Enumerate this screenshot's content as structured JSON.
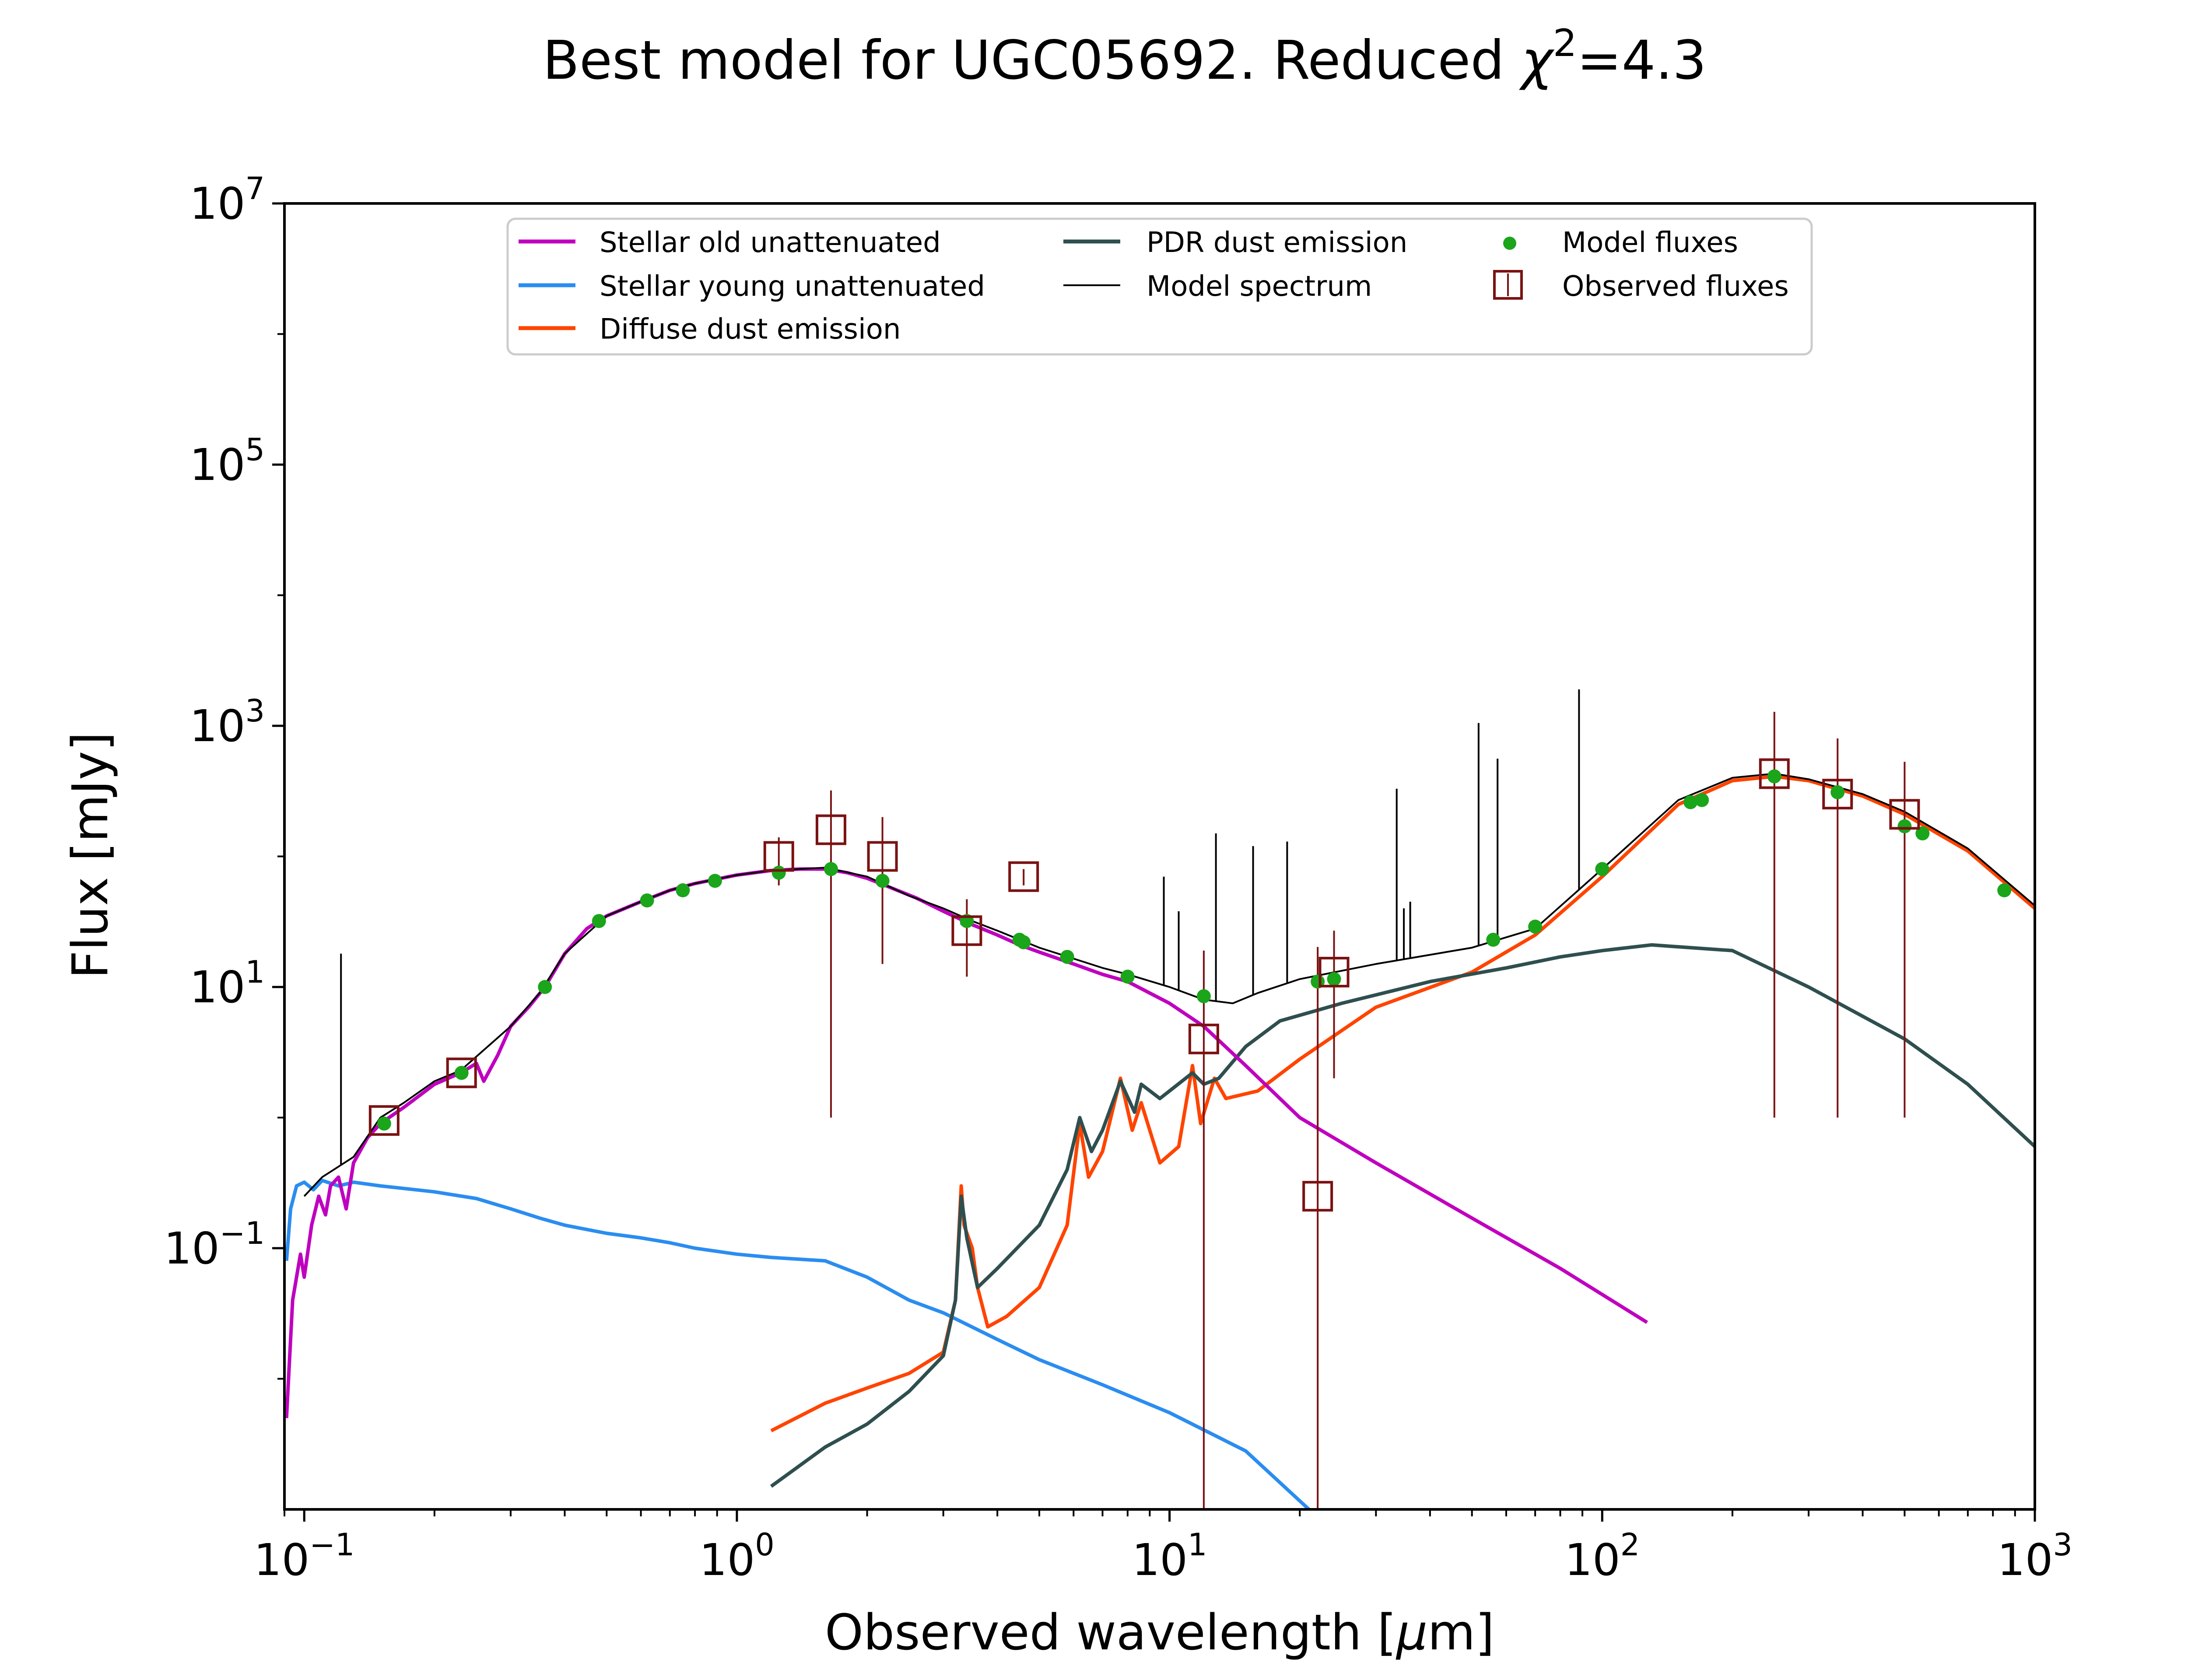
{
  "chart_data": {
    "type": "line",
    "title": "Best model for UGC05692. Reduced χ²=4.3",
    "title_main": "Best model for UGC05692. Reduced ",
    "title_chi": "χ",
    "title_exp": "2",
    "title_value": "=4.3",
    "xlabel": "Observed wavelength [μm]",
    "xlabel_main": "Observed wavelength [",
    "xlabel_mu": "μ",
    "xlabel_end": "m]",
    "ylabel": "Flux [mJy]",
    "x_scale": "log",
    "y_scale": "log",
    "xlim": [
      0.09,
      1000
    ],
    "ylim": [
      0.001,
      10000000
    ],
    "x_ticks": [
      {
        "value": 0.1,
        "base": "10",
        "exp": "−1"
      },
      {
        "value": 1,
        "base": "10",
        "exp": "0"
      },
      {
        "value": 10,
        "base": "10",
        "exp": "1"
      },
      {
        "value": 100,
        "base": "10",
        "exp": "2"
      },
      {
        "value": 1000,
        "base": "10",
        "exp": "3"
      }
    ],
    "y_ticks": [
      {
        "value": 0.1,
        "base": "10",
        "exp": "−1"
      },
      {
        "value": 10,
        "base": "10",
        "exp": "1"
      },
      {
        "value": 1000,
        "base": "10",
        "exp": "3"
      },
      {
        "value": 100000,
        "base": "10",
        "exp": "5"
      },
      {
        "value": 10000000,
        "base": "10",
        "exp": "7"
      }
    ],
    "grid": false,
    "legend_position": "top-center",
    "series": [
      {
        "name": "Stellar old unattenuated",
        "color": "#bf00bf",
        "points": [
          [
            0.091,
            0.005
          ],
          [
            0.094,
            0.04
          ],
          [
            0.098,
            0.09
          ],
          [
            0.1,
            0.06
          ],
          [
            0.104,
            0.15
          ],
          [
            0.108,
            0.25
          ],
          [
            0.112,
            0.18
          ],
          [
            0.115,
            0.3
          ],
          [
            0.12,
            0.35
          ],
          [
            0.125,
            0.2
          ],
          [
            0.13,
            0.45
          ],
          [
            0.14,
            0.7
          ],
          [
            0.15,
            0.9
          ],
          [
            0.17,
            1.2
          ],
          [
            0.2,
            1.8
          ],
          [
            0.23,
            2.2
          ],
          [
            0.25,
            2.6
          ],
          [
            0.26,
            1.9
          ],
          [
            0.28,
            3.0
          ],
          [
            0.3,
            5.0
          ],
          [
            0.33,
            7.0
          ],
          [
            0.36,
            10.0
          ],
          [
            0.4,
            18.0
          ],
          [
            0.45,
            28.0
          ],
          [
            0.5,
            35.0
          ],
          [
            0.6,
            45.0
          ],
          [
            0.7,
            55.0
          ],
          [
            0.8,
            62.0
          ],
          [
            1.0,
            72.0
          ],
          [
            1.2,
            78.0
          ],
          [
            1.4,
            80.0
          ],
          [
            1.6,
            80.0
          ],
          [
            1.8,
            75.0
          ],
          [
            2.0,
            68.0
          ],
          [
            2.2,
            60.0
          ],
          [
            2.6,
            48.0
          ],
          [
            3.0,
            38.0
          ],
          [
            3.5,
            30.0
          ],
          [
            4.0,
            25.0
          ],
          [
            4.5,
            21.0
          ],
          [
            5.0,
            18.5
          ],
          [
            6.0,
            15.0
          ],
          [
            7.0,
            12.5
          ],
          [
            8.0,
            11.0
          ],
          [
            10.0,
            7.5
          ],
          [
            12.0,
            5.0
          ],
          [
            15.0,
            2.5
          ],
          [
            20.0,
            1.0
          ],
          [
            30.0,
            0.45
          ],
          [
            50.0,
            0.17
          ],
          [
            80.0,
            0.07
          ],
          [
            127.0,
            0.027
          ]
        ]
      },
      {
        "name": "Stellar young unattenuated",
        "color": "#2a8df0",
        "points": [
          [
            0.091,
            0.08
          ],
          [
            0.093,
            0.2
          ],
          [
            0.096,
            0.3
          ],
          [
            0.1,
            0.32
          ],
          [
            0.105,
            0.28
          ],
          [
            0.11,
            0.33
          ],
          [
            0.12,
            0.3
          ],
          [
            0.13,
            0.32
          ],
          [
            0.15,
            0.3
          ],
          [
            0.2,
            0.27
          ],
          [
            0.25,
            0.24
          ],
          [
            0.3,
            0.2
          ],
          [
            0.35,
            0.17
          ],
          [
            0.4,
            0.15
          ],
          [
            0.5,
            0.13
          ],
          [
            0.6,
            0.12
          ],
          [
            0.7,
            0.11
          ],
          [
            0.8,
            0.1
          ],
          [
            1.0,
            0.09
          ],
          [
            1.2,
            0.085
          ],
          [
            1.6,
            0.08
          ],
          [
            2.0,
            0.06
          ],
          [
            2.5,
            0.04
          ],
          [
            3.0,
            0.032
          ],
          [
            4.0,
            0.02
          ],
          [
            5.0,
            0.014
          ],
          [
            7.0,
            0.009
          ],
          [
            10.0,
            0.0055
          ],
          [
            15.0,
            0.0028
          ],
          [
            21.0,
            0.001
          ]
        ]
      },
      {
        "name": "Diffuse dust emission",
        "color": "#ff4400",
        "points": [
          [
            1.2,
            0.004
          ],
          [
            1.6,
            0.0065
          ],
          [
            2.0,
            0.0085
          ],
          [
            2.5,
            0.011
          ],
          [
            3.0,
            0.016
          ],
          [
            3.2,
            0.04
          ],
          [
            3.3,
            0.3
          ],
          [
            3.35,
            0.15
          ],
          [
            3.5,
            0.1
          ],
          [
            3.6,
            0.05
          ],
          [
            3.8,
            0.025
          ],
          [
            4.2,
            0.03
          ],
          [
            5.0,
            0.05
          ],
          [
            5.8,
            0.15
          ],
          [
            6.2,
            0.9
          ],
          [
            6.5,
            0.35
          ],
          [
            7.0,
            0.55
          ],
          [
            7.7,
            2.0
          ],
          [
            8.2,
            0.8
          ],
          [
            8.6,
            1.3
          ],
          [
            9.5,
            0.45
          ],
          [
            10.5,
            0.6
          ],
          [
            11.3,
            2.5
          ],
          [
            11.8,
            0.9
          ],
          [
            12.7,
            2.0
          ],
          [
            13.5,
            1.4
          ],
          [
            16.0,
            1.6
          ],
          [
            20.0,
            2.8
          ],
          [
            30.0,
            7.0
          ],
          [
            50.0,
            13.0
          ],
          [
            70.0,
            25.0
          ],
          [
            100.0,
            70.0
          ],
          [
            150.0,
            250.0
          ],
          [
            200.0,
            380.0
          ],
          [
            250.0,
            410.0
          ],
          [
            300.0,
            380.0
          ],
          [
            400.0,
            290.0
          ],
          [
            500.0,
            210.0
          ],
          [
            700.0,
            110.0
          ],
          [
            1000.0,
            40.0
          ]
        ]
      },
      {
        "name": "PDR dust emission",
        "color": "#2f4f4f",
        "points": [
          [
            1.2,
            0.0015
          ],
          [
            1.6,
            0.003
          ],
          [
            2.0,
            0.0045
          ],
          [
            2.5,
            0.008
          ],
          [
            3.0,
            0.015
          ],
          [
            3.2,
            0.04
          ],
          [
            3.3,
            0.25
          ],
          [
            3.4,
            0.12
          ],
          [
            3.6,
            0.05
          ],
          [
            4.0,
            0.07
          ],
          [
            5.0,
            0.15
          ],
          [
            5.8,
            0.4
          ],
          [
            6.2,
            1.0
          ],
          [
            6.6,
            0.55
          ],
          [
            7.0,
            0.8
          ],
          [
            7.7,
            1.9
          ],
          [
            8.3,
            1.1
          ],
          [
            8.6,
            1.8
          ],
          [
            9.5,
            1.4
          ],
          [
            11.3,
            2.2
          ],
          [
            12.0,
            1.8
          ],
          [
            13.0,
            2.0
          ],
          [
            15.0,
            3.5
          ],
          [
            18.0,
            5.5
          ],
          [
            25.0,
            7.5
          ],
          [
            40.0,
            11.0
          ],
          [
            60.0,
            14.0
          ],
          [
            80.0,
            17.0
          ],
          [
            100.0,
            19.0
          ],
          [
            130.0,
            21.0
          ],
          [
            200.0,
            19.0
          ],
          [
            300.0,
            10.0
          ],
          [
            500.0,
            4.0
          ],
          [
            700.0,
            1.8
          ],
          [
            1000.0,
            0.6
          ]
        ]
      },
      {
        "name": "Model spectrum",
        "color": "#000000",
        "points": [
          [
            0.1,
            0.25
          ],
          [
            0.11,
            0.35
          ],
          [
            0.13,
            0.5
          ],
          [
            0.15,
            1.0
          ],
          [
            0.17,
            1.3
          ],
          [
            0.2,
            1.9
          ],
          [
            0.23,
            2.3
          ],
          [
            0.3,
            5.0
          ],
          [
            0.35,
            9.0
          ],
          [
            0.4,
            18.0
          ],
          [
            0.5,
            35.0
          ],
          [
            0.6,
            45.0
          ],
          [
            0.7,
            55.0
          ],
          [
            0.8,
            62.0
          ],
          [
            1.0,
            72.0
          ],
          [
            1.2,
            78.0
          ],
          [
            1.6,
            82.0
          ],
          [
            2.0,
            70.0
          ],
          [
            2.5,
            50.0
          ],
          [
            3.0,
            40.0
          ],
          [
            3.5,
            32.0
          ],
          [
            4.0,
            27.0
          ],
          [
            5.0,
            20.0
          ],
          [
            6.0,
            16.5
          ],
          [
            7.0,
            14.0
          ],
          [
            8.0,
            12.5
          ],
          [
            10.0,
            10.0
          ],
          [
            12.0,
            8.0
          ],
          [
            14.0,
            7.5
          ],
          [
            16.0,
            9.0
          ],
          [
            20.0,
            11.5
          ],
          [
            30.0,
            15.0
          ],
          [
            50.0,
            20.0
          ],
          [
            70.0,
            28.0
          ],
          [
            100.0,
            80.0
          ],
          [
            150.0,
            270.0
          ],
          [
            200.0,
            400.0
          ],
          [
            250.0,
            430.0
          ],
          [
            300.0,
            390.0
          ],
          [
            400.0,
            300.0
          ],
          [
            500.0,
            220.0
          ],
          [
            700.0,
            115.0
          ],
          [
            1000.0,
            42.0
          ]
        ],
        "emission_lines": [
          [
            0.1216,
            18.0
          ],
          [
            3.3,
            30.0
          ],
          [
            9.7,
            70.0
          ],
          [
            10.5,
            38.0
          ],
          [
            12.8,
            150.0
          ],
          [
            15.6,
            120.0
          ],
          [
            18.7,
            130.0
          ],
          [
            33.5,
            330.0
          ],
          [
            34.8,
            40.0
          ],
          [
            36.0,
            45.0
          ],
          [
            51.8,
            1050.0
          ],
          [
            57.3,
            560.0
          ],
          [
            88.4,
            1900.0
          ],
          [
            157.7,
            290.0
          ]
        ]
      }
    ],
    "model_fluxes": {
      "name": "Model fluxes",
      "color": "#1aa51a",
      "points": [
        [
          0.153,
          0.9
        ],
        [
          0.231,
          2.2
        ],
        [
          0.36,
          10.0
        ],
        [
          0.48,
          32.0
        ],
        [
          0.62,
          46.0
        ],
        [
          0.75,
          55.0
        ],
        [
          0.89,
          65.0
        ],
        [
          1.25,
          75.0
        ],
        [
          1.65,
          80.0
        ],
        [
          2.17,
          65.0
        ],
        [
          3.4,
          32.0
        ],
        [
          4.5,
          23.0
        ],
        [
          4.6,
          22.0
        ],
        [
          5.8,
          17.0
        ],
        [
          8.0,
          12.0
        ],
        [
          12.0,
          8.5
        ],
        [
          22.0,
          11.0
        ],
        [
          24.0,
          11.5
        ],
        [
          56.0,
          23.0
        ],
        [
          70.0,
          29.0
        ],
        [
          100.0,
          80.0
        ],
        [
          160.0,
          260.0
        ],
        [
          170.0,
          270.0
        ],
        [
          250.0,
          410.0
        ],
        [
          350.0,
          310.0
        ],
        [
          500.0,
          170.0
        ],
        [
          550.0,
          150.0
        ],
        [
          850.0,
          55.0
        ]
      ]
    },
    "observed_fluxes": {
      "name": "Observed fluxes",
      "color": "#7a1212",
      "points": [
        [
          0.153,
          0.95,
          0.05,
          0.05
        ],
        [
          0.231,
          2.2,
          0.2,
          0.2
        ],
        [
          1.25,
          100.0,
          40.0,
          40.0
        ],
        [
          1.65,
          160.0,
          159.0,
          160.0
        ],
        [
          2.17,
          100.0,
          85.0,
          100.0
        ],
        [
          3.4,
          27.0,
          15.0,
          20.0
        ],
        [
          4.6,
          70.0,
          10.0,
          10.0
        ],
        [
          12.0,
          4.0,
          3.999,
          15.0
        ],
        [
          22.0,
          0.25,
          0.249,
          20.0
        ],
        [
          24.0,
          13.0,
          11.0,
          14.0
        ],
        [
          250.0,
          430.0,
          429.0,
          850.0
        ],
        [
          350.0,
          300.0,
          299.0,
          500.0
        ],
        [
          500.0,
          210.0,
          209.0,
          320.0
        ]
      ]
    }
  }
}
